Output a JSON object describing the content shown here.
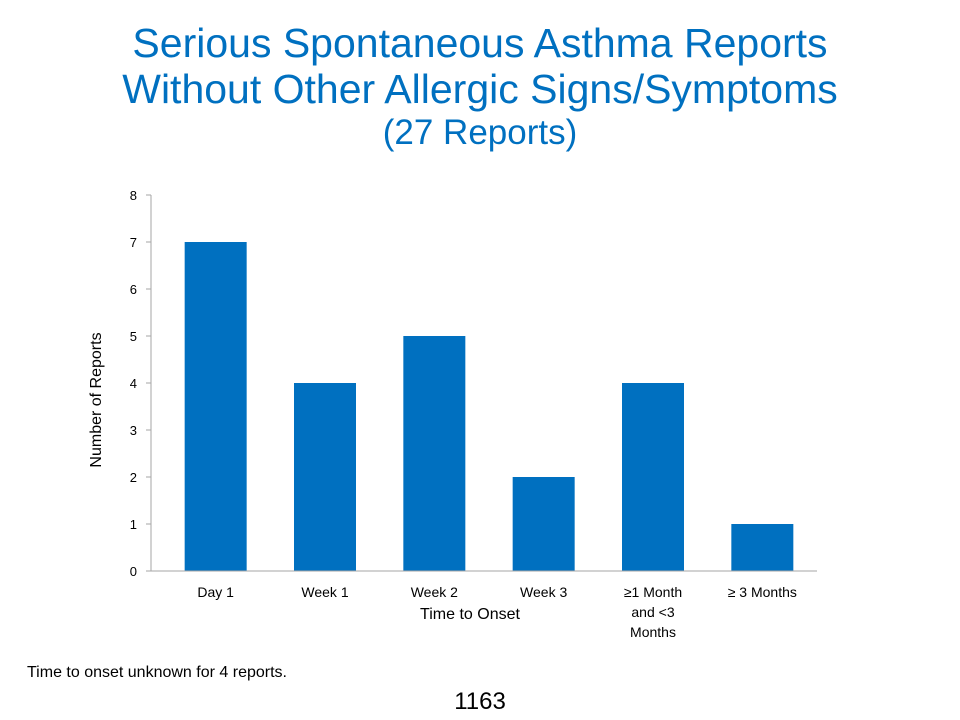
{
  "slide": {
    "title_line1": "Serious Spontaneous Asthma Reports",
    "title_line2": "Without Other Allergic Signs/Symptoms",
    "title_line3": "(27 Reports)",
    "footnote": "Time to onset unknown for 4 reports.",
    "page_number": "1163"
  },
  "chart_data": {
    "type": "bar",
    "categories": [
      [
        "Day 1"
      ],
      [
        "Week 1"
      ],
      [
        "Week 2"
      ],
      [
        "Week 3"
      ],
      [
        "≥1 Month",
        "and <3",
        "Months"
      ],
      [
        "≥ 3 Months"
      ]
    ],
    "values": [
      7,
      4,
      5,
      2,
      4,
      1
    ],
    "xlabel": "Time to Onset",
    "ylabel": "Number of Reports",
    "ylim": [
      0,
      8
    ],
    "yticks": [
      0,
      1,
      2,
      3,
      4,
      5,
      6,
      7,
      8
    ],
    "grid": false,
    "bar_color": "#0070c0",
    "axis_color": "#a6a6a6"
  }
}
